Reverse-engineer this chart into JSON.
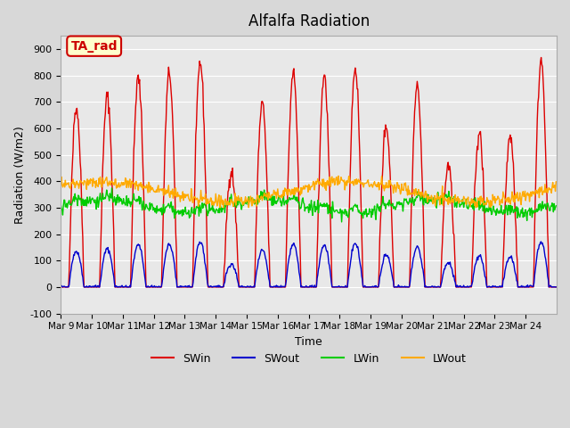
{
  "title": "Alfalfa Radiation",
  "xlabel": "Time",
  "ylabel": "Radiation (W/m2)",
  "ylim": [
    -100,
    950
  ],
  "yticks": [
    -100,
    0,
    100,
    200,
    300,
    400,
    500,
    600,
    700,
    800,
    900
  ],
  "xtick_positions": [
    0,
    1,
    2,
    3,
    4,
    5,
    6,
    7,
    8,
    9,
    10,
    11,
    12,
    13,
    14,
    15
  ],
  "xtick_labels": [
    "Mar 9",
    "Mar 10",
    "Mar 11",
    "Mar 12",
    "Mar 13",
    "Mar 14",
    "Mar 15",
    "Mar 16",
    "Mar 17",
    "Mar 18",
    "Mar 19",
    "Mar 20",
    "Mar 21",
    "Mar 22",
    "Mar 23",
    "Mar 24"
  ],
  "legend_labels": [
    "SWin",
    "SWout",
    "LWin",
    "LWout"
  ],
  "line_colors": {
    "SWin": "#dd0000",
    "SWout": "#0000cc",
    "LWin": "#00cc00",
    "LWout": "#ffaa00"
  },
  "annotation_text": "TA_rad",
  "annotation_color": "#cc0000",
  "annotation_bg": "#ffffcc",
  "n_days": 16,
  "n_points_per_day": 48,
  "sw_peaks": [
    680,
    720,
    790,
    810,
    850,
    440,
    690,
    810,
    800,
    830,
    610,
    760,
    460,
    580,
    570,
    860
  ]
}
